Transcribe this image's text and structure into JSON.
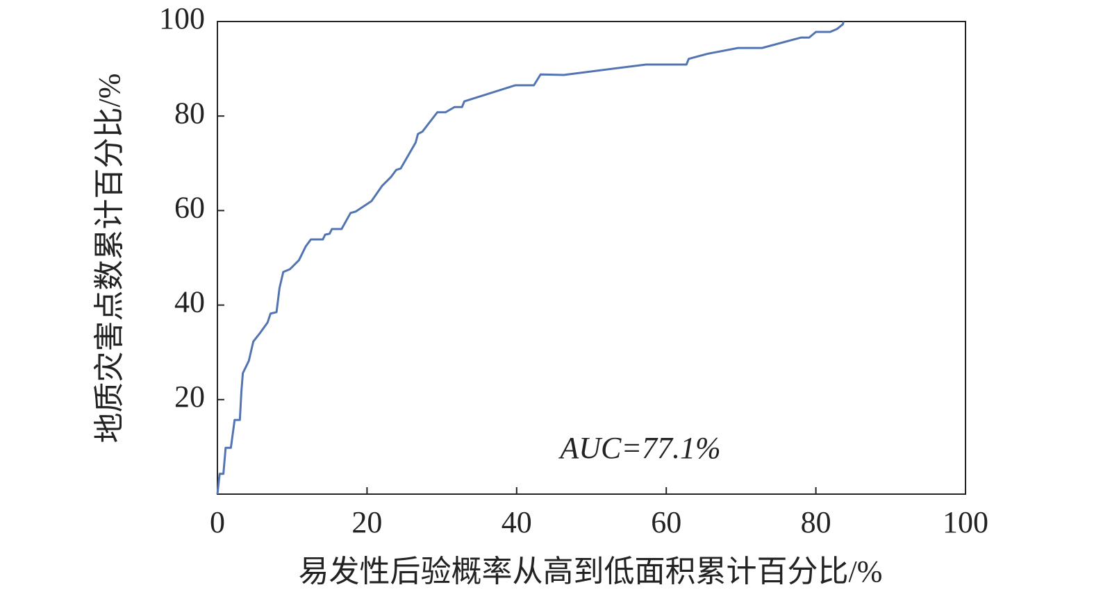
{
  "chart_data": {
    "type": "line",
    "x_label": "易发性后验概率从高到低面积累计百分比/%",
    "y_label": "地质灾害点数累计百分比/%",
    "annotation": "AUC=77.1%",
    "xlim": [
      0,
      100
    ],
    "xticks": [
      0,
      20,
      40,
      60,
      80,
      100
    ],
    "ylim": [
      0,
      100
    ],
    "yticks": [
      20,
      40,
      60,
      80,
      100
    ],
    "grid": false,
    "color": "#5274b3",
    "x": [
      0,
      0.3,
      0.8,
      1.1,
      1.8,
      2.3,
      3.0,
      3.2,
      3.4,
      4.2,
      4.8,
      5.7,
      6.7,
      7.1,
      7.9,
      8.3,
      8.8,
      9.7,
      10.9,
      11.8,
      12.5,
      14.1,
      14.4,
      15.0,
      15.3,
      16.6,
      17.8,
      18.5,
      20.6,
      22.0,
      23.2,
      23.9,
      24.5,
      26.5,
      26.8,
      27.4,
      29.4,
      30.5,
      31.7,
      32.7,
      33.0,
      39.8,
      42.3,
      43.2,
      46.3,
      57.3,
      62.7,
      63.0,
      65.6,
      69.6,
      72.8,
      78.0,
      79.1,
      80.0,
      81.9,
      82.8,
      83.6,
      83.7
    ],
    "values": [
      0,
      4.3,
      4.3,
      9.8,
      9.8,
      15.7,
      15.7,
      21.6,
      25.6,
      28.2,
      32.3,
      34.1,
      36.3,
      38.2,
      38.5,
      43.6,
      47.0,
      47.6,
      49.5,
      52.4,
      53.9,
      53.9,
      54.9,
      55.1,
      56.1,
      56.1,
      59.5,
      59.8,
      62.0,
      65.2,
      67.1,
      68.6,
      68.9,
      74.4,
      76.2,
      76.7,
      80.8,
      80.8,
      81.9,
      81.9,
      83.1,
      86.5,
      86.5,
      88.8,
      88.7,
      90.9,
      90.9,
      92.1,
      93.2,
      94.4,
      94.4,
      96.6,
      96.6,
      97.8,
      97.8,
      98.4,
      99.4,
      100
    ]
  }
}
